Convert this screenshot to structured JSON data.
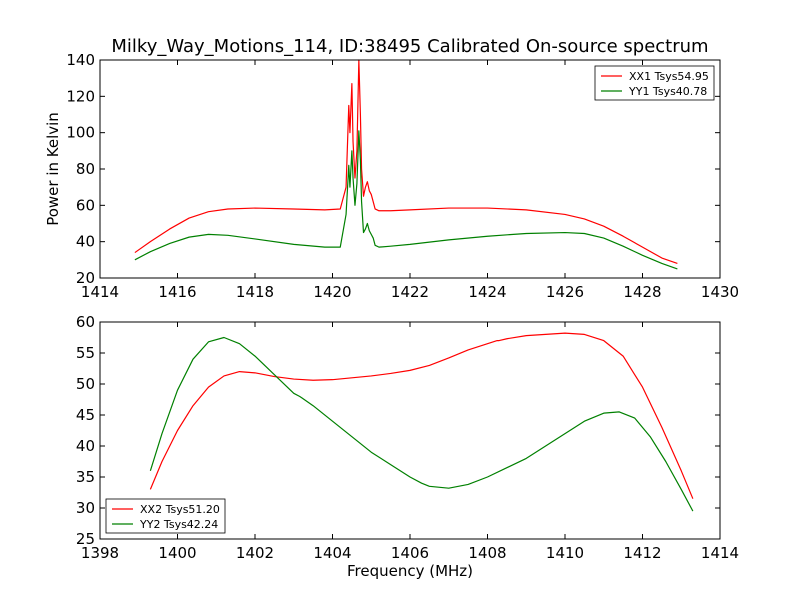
{
  "figure": {
    "title": "Milky_Way_Motions_114, ID:38495 Calibrated On-source spectrum",
    "xlabel": "Frequency (MHz)",
    "ylabel": "Power in Kelvin"
  },
  "chart_data": [
    {
      "type": "line",
      "xlim": [
        1414,
        1430
      ],
      "ylim": [
        20,
        140
      ],
      "xticks": [
        1414,
        1416,
        1418,
        1420,
        1422,
        1424,
        1426,
        1428,
        1430
      ],
      "yticks": [
        20,
        40,
        60,
        80,
        100,
        120,
        140
      ],
      "ylabel": "Power in Kelvin",
      "legend_position": "top-right",
      "grid": false,
      "series": [
        {
          "name": "XX1 Tsys54.95",
          "color": "#ff0000",
          "x": [
            1414.9,
            1415.3,
            1415.8,
            1416.3,
            1416.8,
            1417.3,
            1418.0,
            1419.0,
            1419.8,
            1420.2,
            1420.35,
            1420.42,
            1420.45,
            1420.5,
            1420.53,
            1420.58,
            1420.63,
            1420.68,
            1420.72,
            1420.75,
            1420.8,
            1420.85,
            1420.9,
            1420.95,
            1421.0,
            1421.05,
            1421.1,
            1421.2,
            1421.5,
            1422.0,
            1423.0,
            1424.0,
            1425.0,
            1426.0,
            1426.5,
            1427.0,
            1427.5,
            1428.0,
            1428.5,
            1428.9
          ],
          "y": [
            34,
            40,
            47,
            53,
            56.5,
            58,
            58.5,
            58,
            57.5,
            58,
            70,
            115,
            100,
            127,
            95,
            75,
            90,
            140,
            110,
            80,
            65,
            70,
            73,
            68,
            66,
            62,
            58,
            57,
            57,
            57.5,
            58.5,
            58.5,
            57.5,
            55,
            52.5,
            48.5,
            43,
            37,
            31,
            28
          ]
        },
        {
          "name": "YY1 Tsys40.78",
          "color": "#008000",
          "x": [
            1414.9,
            1415.3,
            1415.8,
            1416.3,
            1416.8,
            1417.3,
            1418.0,
            1419.0,
            1419.8,
            1420.2,
            1420.35,
            1420.42,
            1420.45,
            1420.5,
            1420.53,
            1420.58,
            1420.63,
            1420.68,
            1420.72,
            1420.75,
            1420.8,
            1420.85,
            1420.9,
            1420.95,
            1421.0,
            1421.05,
            1421.1,
            1421.2,
            1421.5,
            1422.0,
            1423.0,
            1424.0,
            1425.0,
            1426.0,
            1426.5,
            1427.0,
            1427.5,
            1428.0,
            1428.5,
            1428.9
          ],
          "y": [
            30,
            34.5,
            39,
            42.5,
            44,
            43.5,
            41.5,
            38.5,
            37,
            37,
            55,
            82,
            70,
            90,
            75,
            60,
            72,
            101,
            85,
            62,
            45,
            47,
            50,
            46,
            44,
            42,
            38,
            37,
            37.5,
            38.5,
            41,
            43,
            44.5,
            45,
            44.5,
            42,
            37.5,
            32.5,
            28,
            25
          ]
        }
      ]
    },
    {
      "type": "line",
      "xlim": [
        1398,
        1414
      ],
      "ylim": [
        25,
        60
      ],
      "xticks": [
        1398,
        1400,
        1402,
        1404,
        1406,
        1408,
        1410,
        1412,
        1414
      ],
      "yticks": [
        25,
        30,
        35,
        40,
        45,
        50,
        55,
        60
      ],
      "xlabel": "Frequency (MHz)",
      "legend_position": "bottom-left",
      "grid": false,
      "series": [
        {
          "name": "XX2 Tsys51.20",
          "color": "#ff0000",
          "x": [
            1399.3,
            1399.6,
            1400.0,
            1400.4,
            1400.8,
            1401.2,
            1401.6,
            1402.0,
            1402.5,
            1403.0,
            1403.5,
            1404.0,
            1404.5,
            1405.0,
            1405.5,
            1406.0,
            1406.5,
            1407.0,
            1407.5,
            1408.0,
            1408.25,
            1408.3,
            1408.5,
            1409.0,
            1409.5,
            1410.0,
            1410.5,
            1411.0,
            1411.5,
            1412.0,
            1412.5,
            1413.0,
            1413.3
          ],
          "y": [
            33,
            37.5,
            42.5,
            46.5,
            49.5,
            51.3,
            52,
            51.8,
            51.2,
            50.8,
            50.6,
            50.7,
            51,
            51.3,
            51.7,
            52.2,
            53,
            54.2,
            55.5,
            56.5,
            57,
            57,
            57.3,
            57.8,
            58,
            58.2,
            58,
            57,
            54.5,
            49.5,
            43,
            36,
            31.5
          ]
        },
        {
          "name": "YY2 Tsys42.24",
          "color": "#008000",
          "x": [
            1399.3,
            1399.6,
            1400.0,
            1400.4,
            1400.8,
            1401.2,
            1401.6,
            1402.0,
            1402.5,
            1403.0,
            1403.15,
            1403.2,
            1403.5,
            1404.0,
            1404.5,
            1405.0,
            1405.5,
            1406.0,
            1406.3,
            1406.5,
            1407.0,
            1407.5,
            1408.0,
            1408.5,
            1409.0,
            1409.5,
            1410.0,
            1410.5,
            1411.0,
            1411.4,
            1411.8,
            1412.2,
            1412.6,
            1413.0,
            1413.3
          ],
          "y": [
            36,
            42,
            49,
            54,
            56.8,
            57.5,
            56.5,
            54.5,
            51.5,
            48.5,
            48,
            47.8,
            46.5,
            44,
            41.5,
            39,
            37,
            35,
            34,
            33.5,
            33.2,
            33.8,
            35,
            36.5,
            38,
            40,
            42,
            44,
            45.3,
            45.5,
            44.5,
            41.5,
            37.5,
            33,
            29.5
          ]
        }
      ]
    }
  ]
}
